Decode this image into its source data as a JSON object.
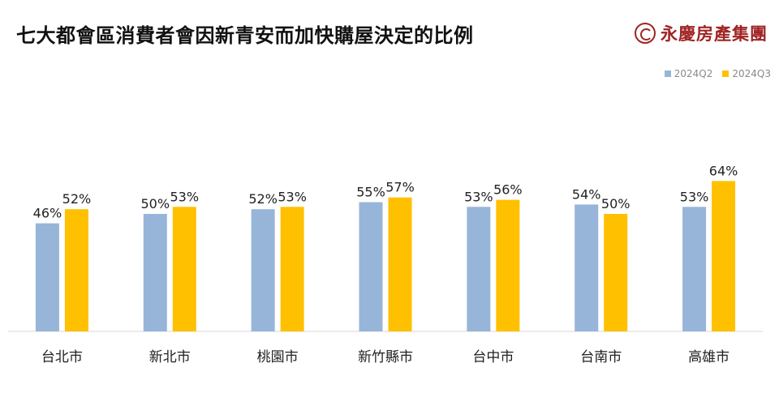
{
  "brand": {
    "name": "永慶房產集團",
    "logo_icon": "yungching-logo-icon",
    "color": "#a02424"
  },
  "chart_data": {
    "type": "bar",
    "title": "七大都會區消費者會因新青安而加快購屋決定的比例",
    "xlabel": "",
    "ylabel": "",
    "ylim": [
      0,
      72
    ],
    "grid": false,
    "legend_position": "top-right",
    "value_suffix": "%",
    "categories": [
      "台北市",
      "新北市",
      "桃園市",
      "新竹縣市",
      "台中市",
      "台南市",
      "高雄市"
    ],
    "series": [
      {
        "name": "2024Q2",
        "color": "#97b5d8",
        "values": [
          46,
          50,
          52,
          55,
          53,
          54,
          53
        ]
      },
      {
        "name": "2024Q3",
        "color": "#ffc000",
        "values": [
          52,
          53,
          53,
          57,
          56,
          50,
          64
        ]
      }
    ]
  }
}
